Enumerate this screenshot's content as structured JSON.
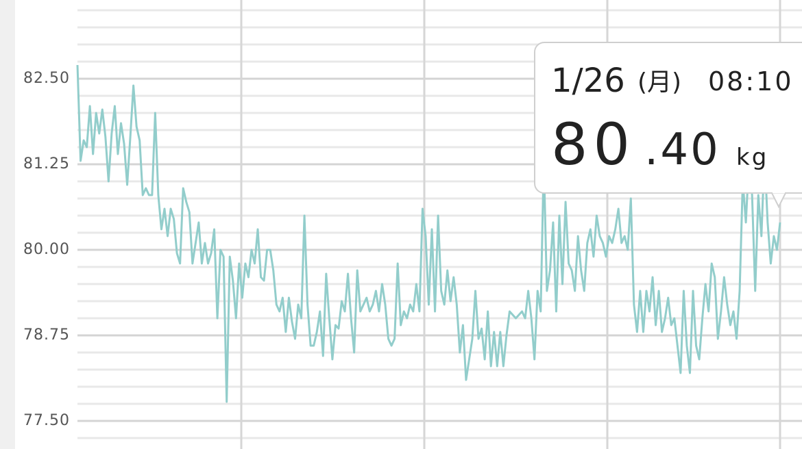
{
  "chart_data": {
    "type": "line",
    "color": "#92cdcb",
    "grid": true,
    "ylim": [
      77.09,
      83.65
    ],
    "yticks": [
      {
        "value": 77.5,
        "label": "77.50"
      },
      78.75,
      {
        "value": 80,
        "label": "80.00"
      },
      81.25,
      {
        "value": 82.5,
        "label": "82.50"
      }
    ],
    "values": [
      82.7,
      81.3,
      81.6,
      81.5,
      82.1,
      81.4,
      82.0,
      81.7,
      82.05,
      81.65,
      81.0,
      81.7,
      82.1,
      81.4,
      81.85,
      81.55,
      80.95,
      81.65,
      82.4,
      81.8,
      81.6,
      80.8,
      80.9,
      80.8,
      80.8,
      82.0,
      80.8,
      80.3,
      80.6,
      80.2,
      80.6,
      80.45,
      79.95,
      79.8,
      80.9,
      80.7,
      80.55,
      79.8,
      80.1,
      80.4,
      79.8,
      80.1,
      79.8,
      79.95,
      80.3,
      79.0,
      80.0,
      79.9,
      77.78,
      79.9,
      79.55,
      79.0,
      79.8,
      79.3,
      79.8,
      79.6,
      80.0,
      79.8,
      80.3,
      79.6,
      79.55,
      80.0,
      80.0,
      79.7,
      79.2,
      79.1,
      79.3,
      78.8,
      79.3,
      78.95,
      78.7,
      79.2,
      79.0,
      80.5,
      79.2,
      78.6,
      78.6,
      78.8,
      79.1,
      78.45,
      79.65,
      79.0,
      78.4,
      78.9,
      78.85,
      79.25,
      79.1,
      79.65,
      79.0,
      78.5,
      79.7,
      79.1,
      79.2,
      79.3,
      79.1,
      79.2,
      79.4,
      79.1,
      79.5,
      79.2,
      78.7,
      78.6,
      78.7,
      79.8,
      78.9,
      79.1,
      79.0,
      79.2,
      79.1,
      79.5,
      79.1,
      80.6,
      80.2,
      79.2,
      80.3,
      79.1,
      80.5,
      79.4,
      79.2,
      79.7,
      79.25,
      79.6,
      79.2,
      78.5,
      78.9,
      78.1,
      78.4,
      78.7,
      79.4,
      78.7,
      78.85,
      78.4,
      79.1,
      78.3,
      78.8,
      78.3,
      78.8,
      78.3,
      78.75,
      79.1,
      79.05,
      79.0,
      79.05,
      79.1,
      79.0,
      79.4,
      79.0,
      78.4,
      79.4,
      79.1,
      81.3,
      79.4,
      79.7,
      80.4,
      79.1,
      80.5,
      79.5,
      80.7,
      79.8,
      79.7,
      79.4,
      80.2,
      79.7,
      79.4,
      80.1,
      80.3,
      79.9,
      80.5,
      80.2,
      80.1,
      79.9,
      80.2,
      80.1,
      80.3,
      80.6,
      80.1,
      80.2,
      80.0,
      80.75,
      79.2,
      78.8,
      79.4,
      78.8,
      79.4,
      79.1,
      79.6,
      78.9,
      79.4,
      78.8,
      79.0,
      79.3,
      78.9,
      79.0,
      78.6,
      78.2,
      79.4,
      78.6,
      78.2,
      79.4,
      78.6,
      78.4,
      79.0,
      79.5,
      79.1,
      79.8,
      79.6,
      78.7,
      79.1,
      79.6,
      79.2,
      78.9,
      79.1,
      78.7,
      79.4,
      81.0,
      80.4,
      81.3,
      80.8,
      79.4,
      80.8,
      80.2,
      81.4,
      80.4,
      79.8,
      80.2,
      80.0,
      80.4
    ],
    "tooltip": {
      "date": "1/26",
      "weekday": "(月)",
      "time": "08:10",
      "value_integer": "80",
      "value_decimal": ".40",
      "unit": "kg"
    }
  }
}
